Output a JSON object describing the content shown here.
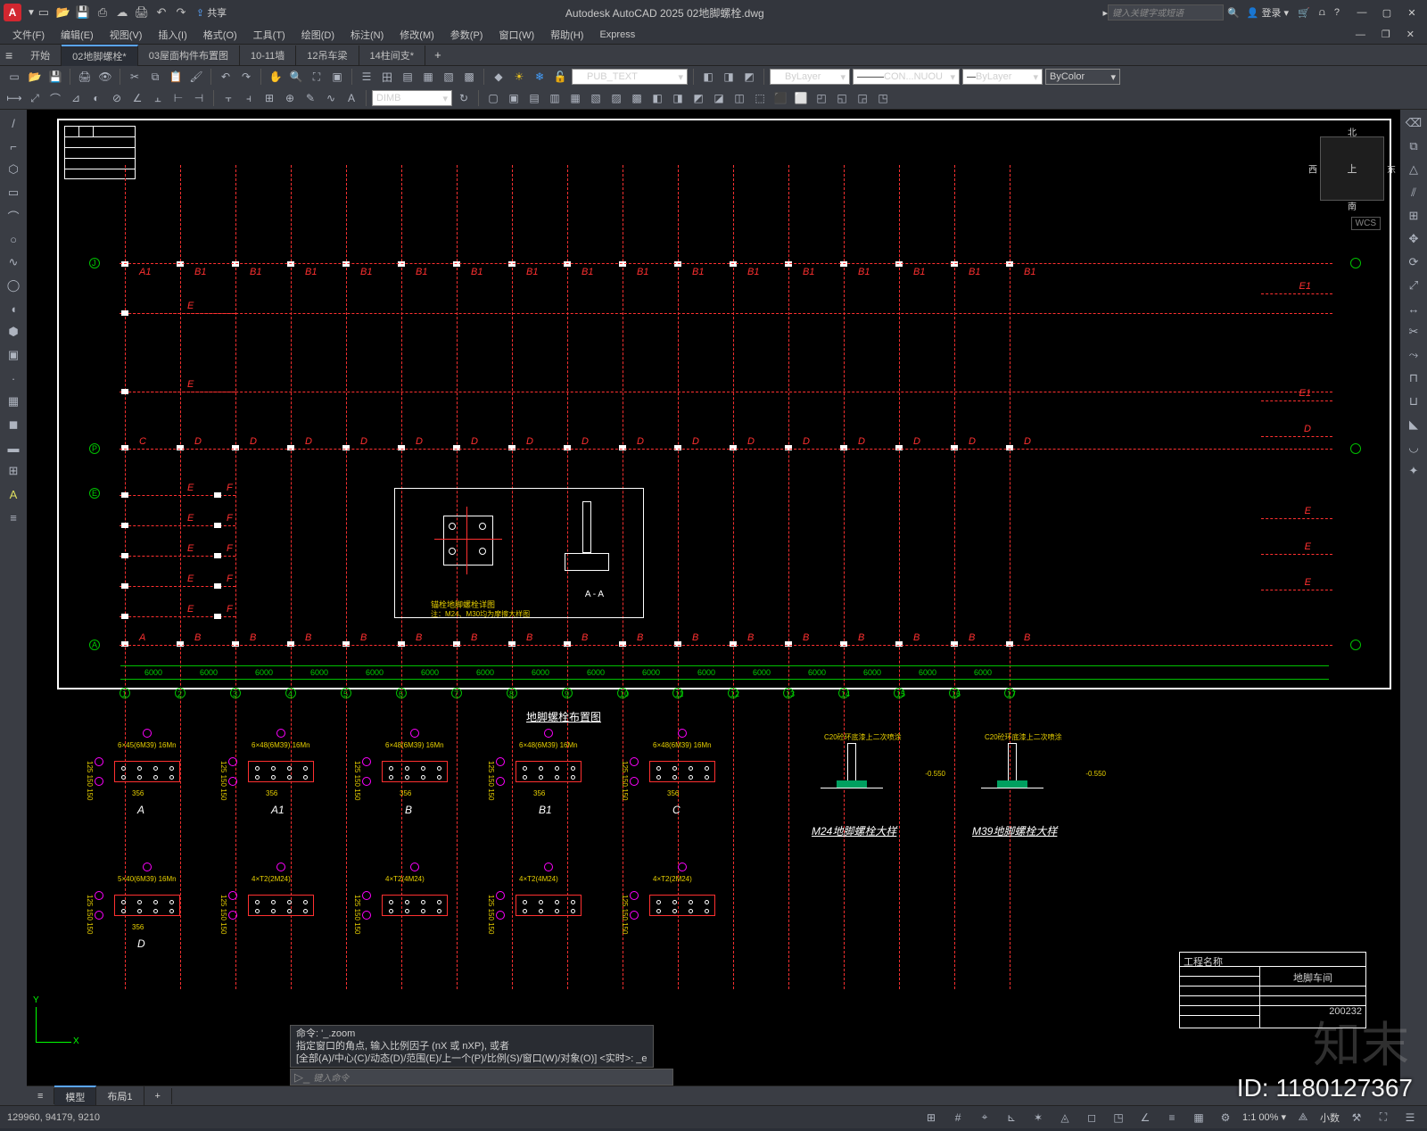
{
  "app_title": "Autodesk AutoCAD 2025   02地脚螺栓.dwg",
  "search_placeholder": "键入关键字或短语",
  "login": "登录",
  "share": "共享",
  "menus": [
    "文件(F)",
    "编辑(E)",
    "视图(V)",
    "插入(I)",
    "格式(O)",
    "工具(T)",
    "绘图(D)",
    "标注(N)",
    "修改(M)",
    "参数(P)",
    "窗口(W)",
    "帮助(H)",
    "Express"
  ],
  "doctabs": {
    "start": "开始",
    "tabs": [
      "02地脚螺栓*",
      "03屋面构件布置图",
      "10-11墙",
      "12吊车梁",
      "14柱间支*"
    ]
  },
  "layer_dd": "PUB_TEXT",
  "linetype_dd": "CON...NUOU",
  "lineweight_dd": "ByLayer",
  "color_dd": "ByColor",
  "bylayer": "ByLayer",
  "dim_style": "DIMB",
  "viewcube": {
    "n": "北",
    "s": "南",
    "e": "东",
    "w": "西",
    "top": "上"
  },
  "wcs": "WCS",
  "ucs": {
    "x": "X",
    "y": "Y"
  },
  "cmd_history": [
    "命令: '_.zoom",
    "指定窗口的角点, 输入比例因子 (nX 或 nXP), 或者",
    "[全部(A)/中心(C)/动态(D)/范围(E)/上一个(P)/比例(S)/窗口(W)/对象(O)] <实时>: _e"
  ],
  "cmd_prompt": "键入命令",
  "layouts": {
    "model": "模型",
    "layout1": "布局1"
  },
  "status": {
    "coords": "129960, 94179, 9210",
    "prec": "小数",
    "scale": "1:1 00% ▾",
    "ann": "▢ ⛶ ⌖ ⊞ ⟲"
  },
  "drawing": {
    "axis_nums": [
      "1",
      "2",
      "3",
      "4",
      "5",
      "6",
      "7",
      "8",
      "9",
      "10",
      "11",
      "12",
      "13",
      "14",
      "15",
      "16",
      "17"
    ],
    "row_labels": [
      "J",
      "P",
      "E",
      "A"
    ],
    "top_marks": {
      "a1": "A1",
      "b1": "B1"
    },
    "left_marks": [
      "E",
      "E",
      "C",
      "E",
      "E",
      "E",
      "E"
    ],
    "mid_marks": {
      "c": "C",
      "d": "D"
    },
    "bot_marks": {
      "a": "A",
      "b": "B"
    },
    "right_marks": {
      "e1": "E1",
      "e": "E",
      "d": "D"
    },
    "f": "F",
    "bay_dim": "6000",
    "inset_title": "锚栓地脚螺栓详图",
    "inset_note": "注：M24、M30均为摩擦大样图",
    "aa": "A - A",
    "plan_title": "地脚螺栓布置图",
    "details": [
      {
        "lab": "A",
        "spec": "6×45(6M39) 16Mn",
        "w": "356"
      },
      {
        "lab": "A1",
        "spec": "6×48(6M39) 16Mn",
        "w": "356"
      },
      {
        "lab": "B",
        "spec": "6×48(6M39) 16Mn",
        "w": "356"
      },
      {
        "lab": "B1",
        "spec": "6×48(6M39) 16Mn",
        "w": "356"
      },
      {
        "lab": "C",
        "spec": "6×48(6M39) 16Mn",
        "w": "356"
      },
      {
        "lab": "D",
        "spec": "5×40(6M39) 16Mn",
        "w": "356"
      }
    ],
    "details2": [
      {
        "lab": "",
        "spec": "4×T2(2M24)"
      },
      {
        "lab": "",
        "spec": "4×T2(4M24)"
      },
      {
        "lab": "",
        "spec": "4×T2(4M24)"
      },
      {
        "lab": "",
        "spec": "4×T2(2M24)"
      }
    ],
    "m24": "M24地脚螺栓大样",
    "m39": "M39地脚螺栓大样",
    "c20": "C20砼环底漆上二次喷涂",
    "neg": "-0.550",
    "tblk": {
      "proj": "工程名称",
      "dwg": "地脚车间",
      "no": "200232"
    }
  },
  "id_label": "ID: 1180127367"
}
